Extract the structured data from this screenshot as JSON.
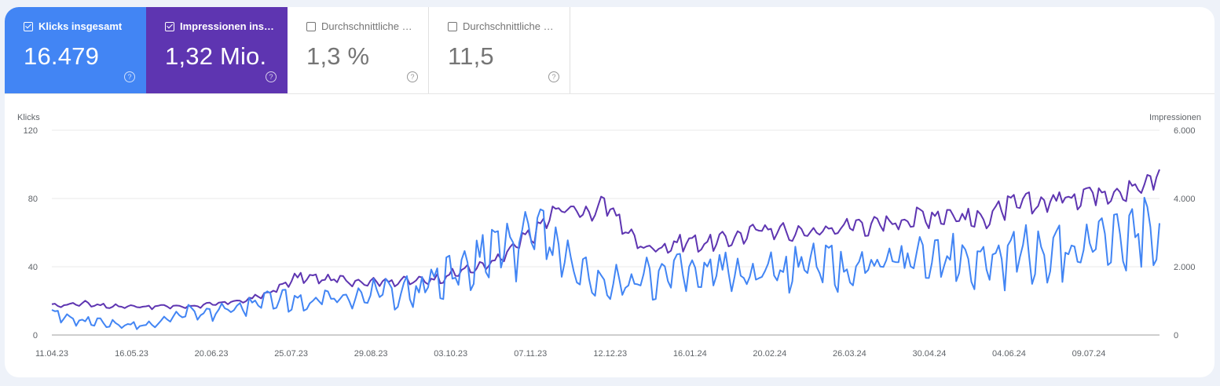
{
  "metrics": [
    {
      "label": "Klicks insgesamt",
      "value": "16.479",
      "checked": true,
      "color": "#4285f4"
    },
    {
      "label": "Impressionen ins…",
      "value": "1,32 Mio.",
      "checked": true,
      "color": "#5e35b1"
    },
    {
      "label": "Durchschnittliche …",
      "value": "1,3 %",
      "checked": false
    },
    {
      "label": "Durchschnittliche …",
      "value": "11,5",
      "checked": false
    }
  ],
  "help_glyph": "?",
  "chart_data": {
    "type": "line",
    "ylabel_left": "Klicks",
    "ylabel_right": "Impressionen",
    "y_left_ticks": [
      "0",
      "40",
      "80",
      "120"
    ],
    "y_right_ticks": [
      "0",
      "2.000",
      "4.000",
      "6.000"
    ],
    "ylim_left": [
      0,
      120
    ],
    "ylim_right": [
      0,
      6000
    ],
    "x_tick_labels": [
      "11.04.23",
      "16.05.23",
      "20.06.23",
      "25.07.23",
      "29.08.23",
      "03.10.23",
      "07.11.23",
      "12.12.23",
      "16.01.24",
      "20.02.24",
      "26.03.24",
      "30.04.24",
      "04.06.24",
      "09.07.24"
    ],
    "grid": true,
    "series": [
      {
        "name": "Klicks",
        "axis": "left",
        "color": "#4285f4",
        "weekly_values": [
          12,
          10,
          9,
          8,
          7,
          6,
          6,
          7,
          12,
          14,
          12,
          16,
          15,
          17,
          20,
          22,
          19,
          20,
          22,
          24,
          22,
          25,
          28,
          26,
          28,
          30,
          36,
          40,
          45,
          52,
          55,
          58,
          60,
          52,
          45,
          38,
          34,
          32,
          33,
          35,
          36,
          38,
          37,
          36,
          40,
          38,
          36,
          38,
          40,
          42,
          44,
          42,
          40,
          42,
          44,
          46,
          44,
          45,
          48,
          50,
          48,
          47,
          45,
          48,
          50,
          52,
          52,
          50,
          55,
          58,
          60,
          62,
          63,
          70
        ]
      },
      {
        "name": "Impressionen",
        "axis": "right",
        "color": "#5e35b1",
        "weekly_values": [
          850,
          900,
          950,
          900,
          850,
          850,
          850,
          850,
          850,
          850,
          900,
          900,
          1000,
          1050,
          1200,
          1400,
          1700,
          1700,
          1650,
          1650,
          1600,
          1600,
          1600,
          1600,
          1600,
          1650,
          1750,
          1900,
          2000,
          2100,
          2400,
          2800,
          3100,
          3600,
          3800,
          3600,
          3800,
          3700,
          3000,
          2600,
          2600,
          2700,
          2800,
          2700,
          2800,
          2900,
          3000,
          3200,
          3100,
          3000,
          3050,
          3100,
          3200,
          3300,
          3250,
          3300,
          3400,
          3500,
          3550,
          3600,
          3500,
          3400,
          3600,
          3800,
          3900,
          3900,
          4000,
          4100,
          4200,
          4300,
          4300,
          4300,
          4400,
          4900
        ]
      }
    ]
  }
}
